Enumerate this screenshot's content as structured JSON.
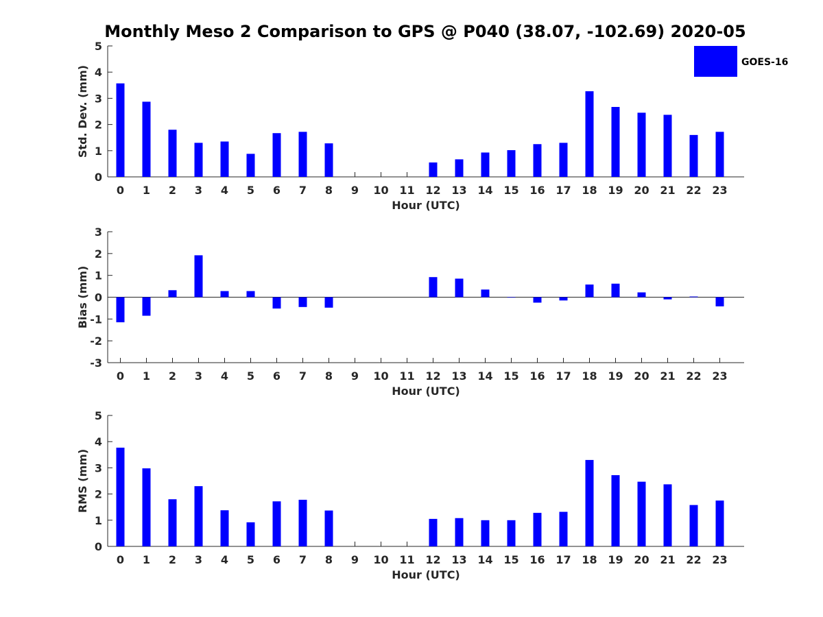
{
  "chart_data": {
    "title": "Monthly Meso 2 Comparison to GPS @ P040 (38.07, -102.69) 2020-05",
    "legend": {
      "label": "GOES-16",
      "color": "#0000ff",
      "placement": "top-right"
    },
    "bar_color": "#0000ff",
    "panels": [
      {
        "type": "bar",
        "ylabel": "Std. Dev. (mm)",
        "xlabel": "Hour (UTC)",
        "ylim": [
          0,
          5
        ],
        "yticks": [
          0,
          1,
          2,
          3,
          4,
          5
        ],
        "categories": [
          "0",
          "1",
          "2",
          "3",
          "4",
          "5",
          "6",
          "7",
          "8",
          "9",
          "10",
          "11",
          "12",
          "13",
          "14",
          "15",
          "16",
          "17",
          "18",
          "19",
          "20",
          "21",
          "22",
          "23"
        ],
        "values": [
          3.57,
          2.87,
          1.8,
          1.3,
          1.35,
          0.88,
          1.67,
          1.72,
          1.28,
          null,
          null,
          null,
          0.55,
          0.67,
          0.93,
          1.02,
          1.25,
          1.3,
          3.27,
          2.67,
          2.45,
          2.37,
          1.6,
          1.72
        ]
      },
      {
        "type": "bar",
        "ylabel": "Bias (mm)",
        "xlabel": "Hour (UTC)",
        "ylim": [
          -3,
          3
        ],
        "yticks": [
          -3,
          -2,
          -1,
          0,
          1,
          2,
          3
        ],
        "categories": [
          "0",
          "1",
          "2",
          "3",
          "4",
          "5",
          "6",
          "7",
          "8",
          "9",
          "10",
          "11",
          "12",
          "13",
          "14",
          "15",
          "16",
          "17",
          "18",
          "19",
          "20",
          "21",
          "22",
          "23"
        ],
        "values": [
          -1.15,
          -0.85,
          0.32,
          1.92,
          0.28,
          0.28,
          -0.52,
          -0.45,
          -0.48,
          null,
          null,
          null,
          0.92,
          0.85,
          0.35,
          -0.02,
          -0.25,
          -0.15,
          0.58,
          0.62,
          0.22,
          -0.1,
          0.03,
          -0.42
        ]
      },
      {
        "type": "bar",
        "ylabel": "RMS (mm)",
        "xlabel": "Hour (UTC)",
        "ylim": [
          0,
          5
        ],
        "yticks": [
          0,
          1,
          2,
          3,
          4,
          5
        ],
        "categories": [
          "0",
          "1",
          "2",
          "3",
          "4",
          "5",
          "6",
          "7",
          "8",
          "9",
          "10",
          "11",
          "12",
          "13",
          "14",
          "15",
          "16",
          "17",
          "18",
          "19",
          "20",
          "21",
          "22",
          "23"
        ],
        "values": [
          3.77,
          2.98,
          1.8,
          2.3,
          1.38,
          0.92,
          1.72,
          1.78,
          1.37,
          null,
          null,
          null,
          1.05,
          1.08,
          1.0,
          1.0,
          1.28,
          1.32,
          3.3,
          2.72,
          2.47,
          2.37,
          1.58,
          1.75
        ]
      }
    ]
  }
}
